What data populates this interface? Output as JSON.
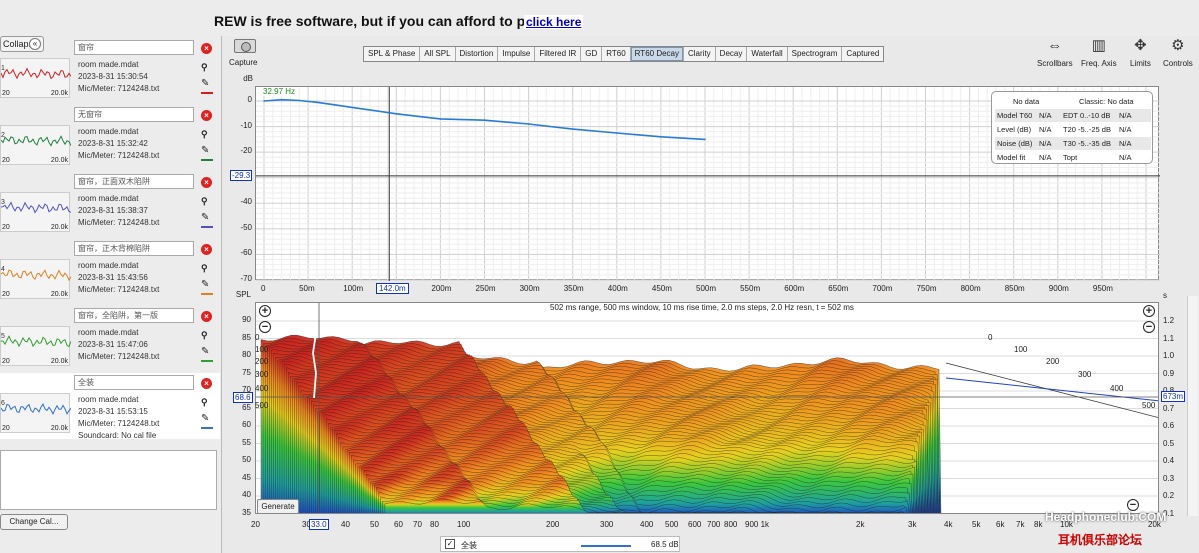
{
  "banner": {
    "text": "REW is free software, but if you can afford to please",
    "link": "click here"
  },
  "left": {
    "collapse": "Collapse",
    "measurements": [
      {
        "num": "1",
        "name": "窗帘",
        "file": "room made.mdat",
        "date": "2023-8-31 15:30:54",
        "mic": "Mic/Meter: 7124248.txt",
        "color": "#d02020",
        "l": "20",
        "r": "20.0k"
      },
      {
        "num": "2",
        "name": "无窗帘",
        "file": "room made.mdat",
        "date": "2023-8-31 15:32:42",
        "mic": "Mic/Meter: 7124248.txt",
        "color": "#208040",
        "l": "20",
        "r": "20.0k"
      },
      {
        "num": "3",
        "name": "窗帘，正面双木陷阱",
        "file": "room made.mdat",
        "date": "2023-8-31 15:38:37",
        "mic": "Mic/Meter: 7124248.txt",
        "color": "#5050d0",
        "l": "20",
        "r": "20.0k"
      },
      {
        "num": "4",
        "name": "窗帘，正木背棉陷阱",
        "file": "room made.mdat",
        "date": "2023-8-31 15:43:56",
        "mic": "Mic/Meter: 7124248.txt",
        "color": "#e08020",
        "l": "20",
        "r": "20.0k"
      },
      {
        "num": "5",
        "name": "窗帘，全陷阱，第一版",
        "file": "room made.mdat",
        "date": "2023-8-31 15:47:06",
        "mic": "Mic/Meter: 7124248.txt",
        "color": "#30a030",
        "l": "20",
        "r": "20.0k"
      },
      {
        "num": "6",
        "name": "全装",
        "file": "room made.mdat",
        "date": "2023-8-31 15:53:15",
        "mic": "Mic/Meter: 7124248.txt",
        "soundcard": "Soundcard: No cal file",
        "color": "#3070d0",
        "l": "20",
        "r": "20.0k"
      }
    ],
    "change_cal": "Change Cal..."
  },
  "toolbar": {
    "capture": "Capture",
    "tabs": [
      "SPL & Phase",
      "All SPL",
      "Distortion",
      "Impulse",
      "Filtered IR",
      "GD",
      "RT60",
      "RT60 Decay",
      "Clarity",
      "Decay",
      "Waterfall",
      "Spectrogram",
      "Captured"
    ],
    "active_tab": "RT60 Decay",
    "right": {
      "scrollbars": "Scrollbars",
      "freq_axis": "Freq. Axis",
      "limits": "Limits",
      "controls": "Controls"
    }
  },
  "upper_graph": {
    "y_unit": "dB",
    "y_ticks": [
      "0",
      "-10",
      "-20",
      "-30",
      "-40",
      "-50",
      "-60",
      "-70"
    ],
    "x_ticks": [
      "0",
      "50m",
      "100m",
      "150m",
      "200m",
      "250m",
      "300m",
      "350m",
      "400m",
      "450m",
      "500m",
      "550m",
      "600m",
      "650m",
      "700m",
      "750m",
      "800m",
      "850m",
      "900m",
      "950m"
    ],
    "freq_label": "32.97 Hz",
    "cursor_time": "142.0m",
    "cursor_db": "-29.3",
    "legend": {
      "head_left": "No data",
      "head_right": "Classic: No data",
      "rows": [
        {
          "a": "Model T60",
          "b": "N/A",
          "c": "EDT  0..-10 dB",
          "d": "N/A"
        },
        {
          "a": "Level (dB)",
          "b": "N/A",
          "c": "T20 -5..-25 dB",
          "d": "N/A"
        },
        {
          "a": "Noise (dB)",
          "b": "N/A",
          "c": "T30 -5..-35 dB",
          "d": "N/A"
        },
        {
          "a": "Model fit",
          "b": "N/A",
          "c": "Topt",
          "d": "N/A"
        }
      ]
    }
  },
  "chart_data": {
    "type": "line",
    "title": "",
    "xlabel": "",
    "ylabel": "dB",
    "x": [
      0,
      20,
      40,
      60,
      80,
      100,
      150,
      200,
      250,
      300,
      350,
      400,
      450,
      500
    ],
    "series": [
      {
        "values": [
          0,
          0.5,
          0.2,
          -0.5,
          -1.5,
          -2.5,
          -5,
          -7,
          -7.5,
          -9,
          -11,
          -12.5,
          -14,
          -15
        ]
      }
    ],
    "xlim": [
      0,
      1000
    ],
    "ylim": [
      -70,
      5
    ]
  },
  "lower_graph": {
    "y_unit": "SPL",
    "title": "502 ms range, 500 ms window, 10 ms rise time, 2.0 ms steps,  2.0 Hz resn, t = 502 ms",
    "left_ticks": [
      "90",
      "85",
      "80",
      "75",
      "70",
      "65",
      "60",
      "55",
      "50",
      "45",
      "40",
      "35"
    ],
    "right_unit": "s",
    "right_ticks": [
      "1.2",
      "1.1",
      "1.0",
      "0.9",
      "0.8",
      "0.7",
      "0.6",
      "0.5",
      "0.4",
      "0.3",
      "0.2",
      "0.1"
    ],
    "x_ticks": [
      "20",
      "30",
      "40",
      "50",
      "60",
      "70",
      "80",
      "100",
      "200",
      "300",
      "400",
      "500",
      "600",
      "700",
      "800",
      "900 1k",
      "2k",
      "3k",
      "4k",
      "5k",
      "6k",
      "7k",
      "8k",
      "10k",
      "20k"
    ],
    "depth_ticks": [
      "0",
      "100",
      "200",
      "300",
      "400",
      "500"
    ],
    "cursor_spl": "68.6",
    "cursor_freq": "33.0",
    "cursor_s": "673m",
    "generate": "Generate"
  },
  "statusbar": {
    "name": "全装",
    "value": "68.5 dB"
  },
  "watermark": {
    "line1": "Headphoneclub.COM",
    "line2": "耳机俱乐部论坛"
  }
}
